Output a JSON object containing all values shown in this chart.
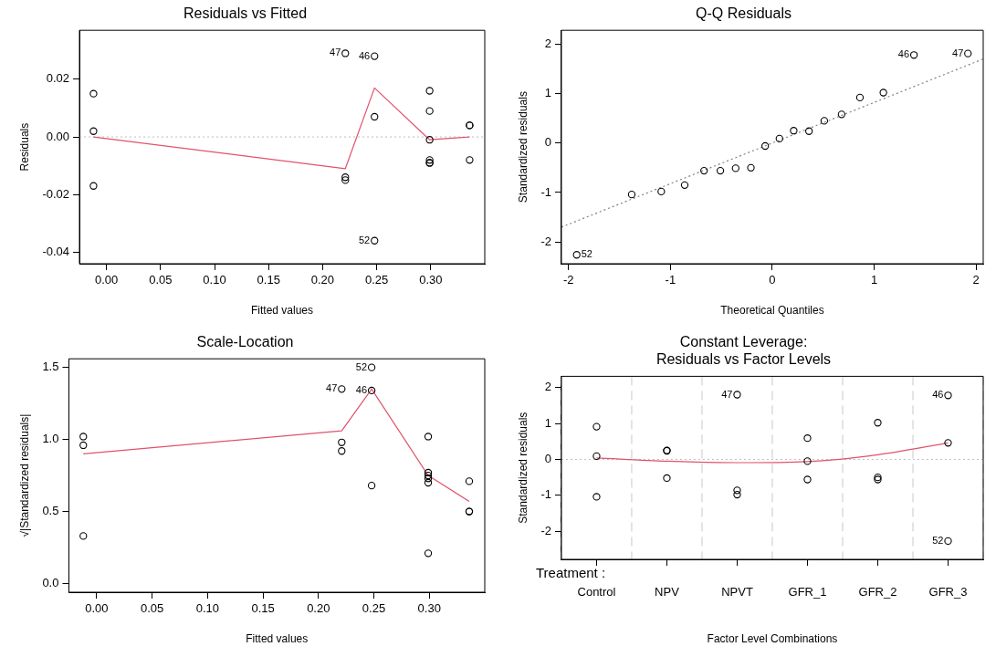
{
  "chart_data": [
    {
      "type": "scatter",
      "title": "Residuals vs Fitted",
      "xlabel": "Fitted values",
      "ylabel": "Residuals",
      "xlim": [
        -0.025,
        0.35
      ],
      "ylim": [
        -0.044,
        0.037
      ],
      "xticks": [
        {
          "value": 0,
          "label": "0.00"
        },
        {
          "value": 0.05,
          "label": "0.05"
        },
        {
          "value": 0.1,
          "label": "0.10"
        },
        {
          "value": 0.15,
          "label": "0.15"
        },
        {
          "value": 0.2,
          "label": "0.20"
        },
        {
          "value": 0.25,
          "label": "0.25"
        },
        {
          "value": 0.3,
          "label": "0.30"
        }
      ],
      "yticks": [
        {
          "value": -0.04,
          "label": "-0.04"
        },
        {
          "value": -0.02,
          "label": "-0.02"
        },
        {
          "value": 0,
          "label": "0.00"
        },
        {
          "value": 0.02,
          "label": "0.02"
        }
      ],
      "series": [
        {
          "marker": "circle",
          "color": "#000000",
          "x": [
            -0.012,
            -0.012,
            -0.012,
            0.221,
            0.221,
            0.221,
            0.248,
            0.248,
            0.248,
            0.299,
            0.299,
            0.299,
            0.299,
            0.299,
            0.299,
            0.336,
            0.336,
            0.336
          ],
          "values": [
            0.015,
            0.002,
            -0.017,
            -0.014,
            -0.015,
            0.029,
            0.028,
            0.007,
            -0.036,
            0.016,
            0.009,
            -0.001,
            -0.008,
            -0.009,
            -0.009,
            0.004,
            0.004,
            -0.008
          ]
        },
        {
          "type": "line",
          "marker": "none",
          "color": "#df536b",
          "x": [
            -0.012,
            0.221,
            0.248,
            0.299,
            0.336
          ],
          "values": [
            0,
            -0.011,
            0.017,
            -0.001,
            0
          ]
        }
      ],
      "ref_lines": [
        {
          "axis": "y",
          "value": 0,
          "color": "#bebebe",
          "line_style": "dotted"
        }
      ],
      "annotations": [
        {
          "text": "47",
          "x": 0.221,
          "y": 0.029
        },
        {
          "text": "46",
          "x": 0.248,
          "y": 0.028
        },
        {
          "text": "52",
          "x": 0.248,
          "y": -0.036
        }
      ]
    },
    {
      "type": "scatter",
      "title": "Q-Q Residuals",
      "xlabel": "Theoretical Quantiles",
      "ylabel": "Standardized residuals",
      "xlim": [
        -2.07,
        2.07
      ],
      "ylim": [
        -2.44,
        2.28
      ],
      "xticks": [
        -2,
        -1,
        0,
        1,
        2
      ],
      "yticks": [
        -2,
        -1,
        0,
        1,
        2
      ],
      "series": [
        {
          "marker": "circle",
          "color": "#000000",
          "x": [
            -1.92,
            -1.38,
            -1.09,
            -0.86,
            -0.67,
            -0.51,
            -0.36,
            -0.21,
            -0.07,
            0.07,
            0.21,
            0.36,
            0.51,
            0.68,
            0.86,
            1.09,
            1.39,
            1.92
          ],
          "values": [
            -2.26,
            -1.04,
            -0.98,
            -0.85,
            -0.56,
            -0.56,
            -0.51,
            -0.5,
            -0.06,
            0.09,
            0.25,
            0.24,
            0.45,
            0.58,
            0.92,
            1.02,
            1.78,
            1.81
          ]
        },
        {
          "type": "line",
          "marker": "none",
          "color": "#808080",
          "line_style": "dotted",
          "x": [
            -2.07,
            2.07
          ],
          "values": [
            -1.7,
            1.7
          ]
        }
      ],
      "annotations": [
        {
          "text": "52",
          "x": -1.92,
          "y": -2.26
        },
        {
          "text": "46",
          "x": 1.39,
          "y": 1.78
        },
        {
          "text": "47",
          "x": 1.92,
          "y": 1.81
        }
      ]
    },
    {
      "type": "scatter",
      "title": "Scale-Location",
      "xlabel": "Fitted values",
      "ylabel": "√|Standardized residuals|",
      "xlim": [
        -0.025,
        0.35
      ],
      "ylim": [
        -0.06,
        1.56
      ],
      "xticks": [
        {
          "value": 0,
          "label": "0.00"
        },
        {
          "value": 0.05,
          "label": "0.05"
        },
        {
          "value": 0.1,
          "label": "0.10"
        },
        {
          "value": 0.15,
          "label": "0.15"
        },
        {
          "value": 0.2,
          "label": "0.20"
        },
        {
          "value": 0.25,
          "label": "0.25"
        },
        {
          "value": 0.3,
          "label": "0.30"
        }
      ],
      "yticks": [
        {
          "value": 0,
          "label": "0.0"
        },
        {
          "value": 0.5,
          "label": "0.5"
        },
        {
          "value": 1,
          "label": "1.0"
        },
        {
          "value": 1.5,
          "label": "1.5"
        }
      ],
      "series": [
        {
          "marker": "circle",
          "color": "#000000",
          "x": [
            -0.012,
            -0.012,
            -0.012,
            0.221,
            0.221,
            0.221,
            0.248,
            0.248,
            0.248,
            0.299,
            0.299,
            0.299,
            0.299,
            0.299,
            0.299,
            0.336,
            0.336,
            0.336
          ],
          "values": [
            1.02,
            0.96,
            0.33,
            0.98,
            0.92,
            1.35,
            1.5,
            1.34,
            0.68,
            1.02,
            0.77,
            0.75,
            0.73,
            0.7,
            0.21,
            0.71,
            0.5,
            0.5
          ]
        },
        {
          "type": "line",
          "marker": "none",
          "color": "#df536b",
          "x": [
            -0.012,
            0.221,
            0.248,
            0.299,
            0.336
          ],
          "values": [
            0.9,
            1.06,
            1.35,
            0.75,
            0.57
          ]
        }
      ],
      "annotations": [
        {
          "text": "52",
          "x": 0.248,
          "y": 1.5
        },
        {
          "text": "47",
          "x": 0.221,
          "y": 1.35
        },
        {
          "text": "46",
          "x": 0.248,
          "y": 1.34
        }
      ]
    },
    {
      "type": "scatter",
      "title": "Constant Leverage:\nResiduals vs Factor Levels",
      "xlabel": "Factor Level Combinations",
      "ylabel": "Standardized residuals",
      "categories": [
        "Control",
        "NPV",
        "NPVT",
        "GFR_1",
        "GFR_2",
        "GFR_3"
      ],
      "grid": "x",
      "ylim": [
        -2.78,
        2.31
      ],
      "yticks": [
        -2,
        -1,
        0,
        1,
        2
      ],
      "series": [
        {
          "marker": "circle",
          "color": "#000000",
          "x": [
            "Control",
            "Control",
            "Control",
            "NPV",
            "NPV",
            "NPV",
            "NPVT",
            "NPVT",
            "NPVT",
            "GFR_1",
            "GFR_1",
            "GFR_1",
            "GFR_2",
            "GFR_2",
            "GFR_2",
            "GFR_3",
            "GFR_3",
            "GFR_3"
          ],
          "values": [
            0.91,
            0.09,
            -1.04,
            0.25,
            0.24,
            -0.52,
            1.8,
            -0.86,
            -0.98,
            0.59,
            -0.05,
            -0.56,
            1.02,
            -0.5,
            -0.56,
            1.78,
            0.46,
            -2.27
          ]
        },
        {
          "type": "line",
          "marker": "none",
          "color": "#df536b",
          "x": [
            "Control",
            "NPV",
            "NPVT",
            "GFR_1",
            "GFR_2",
            "GFR_3"
          ],
          "values": [
            0.04,
            -0.05,
            -0.09,
            -0.06,
            0.13,
            0.46
          ]
        }
      ],
      "ref_lines": [
        {
          "axis": "y",
          "value": 0,
          "color": "#bebebe",
          "line_style": "dotted"
        }
      ],
      "annotations": [
        {
          "text": "47",
          "x": "NPVT",
          "y": 1.8
        },
        {
          "text": "46",
          "x": "GFR_3",
          "y": 1.78
        },
        {
          "text": "52",
          "x": "GFR_3",
          "y": -2.27
        },
        "Treatment :"
      ]
    }
  ]
}
